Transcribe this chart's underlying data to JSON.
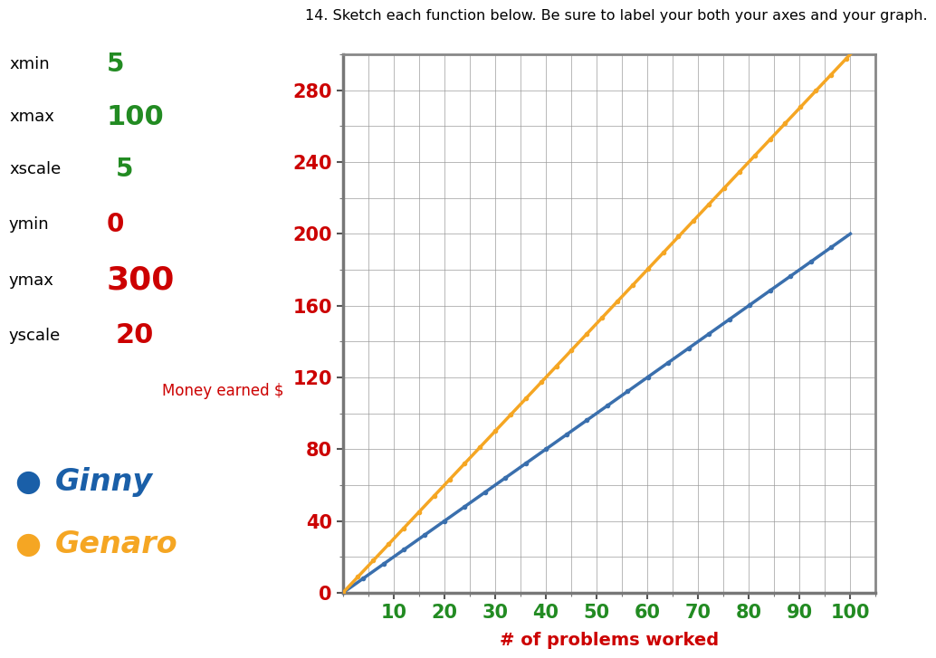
{
  "title": "14. Sketch each function below. Be sure to label your both your axes and your graph.",
  "xlabel": "# of problems worked",
  "ylabel": "Money earned $",
  "xmin": 5,
  "xmax": 100,
  "xscale": 5,
  "ymin": 0,
  "ymax": 300,
  "yscale": 20,
  "x_tick_labels": [
    "10",
    "20",
    "30",
    "40",
    "50",
    "60",
    "70",
    "80",
    "90",
    "100"
  ],
  "x_tick_values": [
    10,
    20,
    30,
    40,
    50,
    60,
    70,
    80,
    90,
    100
  ],
  "y_tick_labels": [
    "0",
    "40",
    "80",
    "120",
    "160",
    "200",
    "240",
    "280"
  ],
  "y_tick_values": [
    0,
    40,
    80,
    120,
    160,
    200,
    240,
    280
  ],
  "ginny_slope": 2.0,
  "ginny_intercept": 0,
  "genaro_slope": 3.0,
  "genaro_intercept": 0,
  "ginny_color": "#3a6fad",
  "genaro_color": "#f5a623",
  "grid_color": "#999999",
  "background_color": "#ffffff",
  "title_color": "#000000",
  "xlabel_color": "#cc0000",
  "ylabel_color": "#cc0000",
  "xtick_color": "#228B22",
  "ytick_color": "#cc0000",
  "legend_ginny": "Ginny",
  "legend_genaro": "Genaro",
  "legend_ginny_color": "#1a5fa8",
  "legend_genaro_color": "#f5a623",
  "axis_color": "#777777",
  "side_xmin": "5",
  "side_xmax": "100",
  "side_xscale": "5",
  "side_ymin": "0",
  "side_ymax": "300",
  "side_yscale": "20",
  "money_earned_label": "Money earned $"
}
